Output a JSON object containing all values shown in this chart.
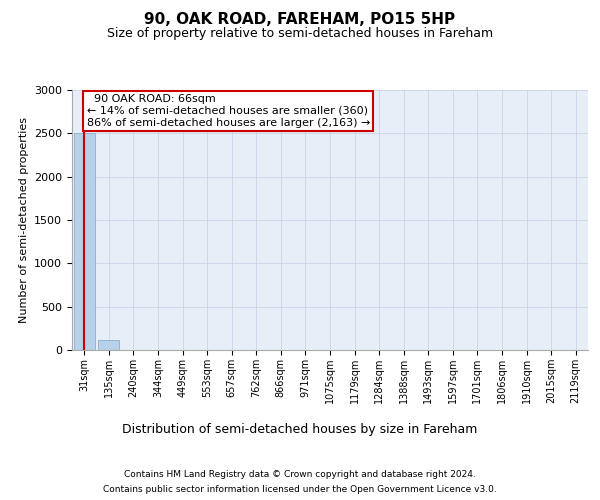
{
  "title": "90, OAK ROAD, FAREHAM, PO15 5HP",
  "subtitle": "Size of property relative to semi-detached houses in Fareham",
  "xlabel": "Distribution of semi-detached houses by size in Fareham",
  "ylabel": "Number of semi-detached properties",
  "footnote1": "Contains HM Land Registry data © Crown copyright and database right 2024.",
  "footnote2": "Contains public sector information licensed under the Open Government Licence v3.0.",
  "bar_labels": [
    "31sqm",
    "135sqm",
    "240sqm",
    "344sqm",
    "449sqm",
    "553sqm",
    "657sqm",
    "762sqm",
    "866sqm",
    "971sqm",
    "1075sqm",
    "1179sqm",
    "1284sqm",
    "1388sqm",
    "1493sqm",
    "1597sqm",
    "1701sqm",
    "1806sqm",
    "1910sqm",
    "2015sqm",
    "2119sqm"
  ],
  "bar_values": [
    2500,
    110,
    0,
    0,
    0,
    0,
    0,
    0,
    0,
    0,
    0,
    0,
    0,
    0,
    0,
    0,
    0,
    0,
    0,
    0,
    0
  ],
  "bar_color": "#b8d0ea",
  "bar_edge_color": "#8ab0d0",
  "property_line_x": 0,
  "property_label": "90 OAK ROAD: 66sqm",
  "smaller_pct": "14%",
  "smaller_count": "360",
  "larger_pct": "86%",
  "larger_count": "2,163",
  "ylim": [
    0,
    3000
  ],
  "yticks": [
    0,
    500,
    1000,
    1500,
    2000,
    2500,
    3000
  ],
  "grid_color": "#c8d4e8",
  "background_color": "#e8eef8",
  "property_line_color": "#cc0000",
  "annotation_box_color": "#cc0000",
  "title_fontsize": 11,
  "subtitle_fontsize": 9,
  "ylabel_fontsize": 8,
  "xlabel_fontsize": 9,
  "ytick_fontsize": 8,
  "xtick_fontsize": 7,
  "annotation_fontsize": 8,
  "footnote_fontsize": 6.5
}
